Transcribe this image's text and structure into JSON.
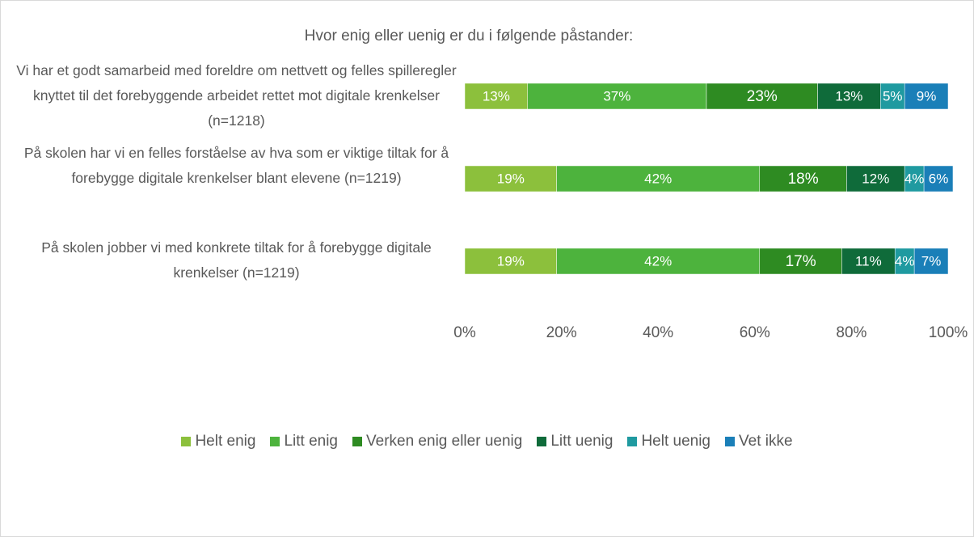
{
  "chart_data": {
    "type": "stacked-bar-horizontal",
    "title": "Hvor enig eller uenig er du i følgende påstander:",
    "categories": [
      "Vi har et godt samarbeid med foreldre om nettvett og felles spilleregler knyttet til det forebyggende arbeidet rettet mot digitale krenkelser (n=1218)",
      "På skolen har vi en felles forståelse av hva som er viktige tiltak for å forebygge digitale krenkelser blant elevene (n=1219)",
      "På skolen jobber vi med konkrete tiltak for å forebygge digitale krenkelser (n=1219)"
    ],
    "series": [
      {
        "name": "Helt enig",
        "color": "#8cc03c",
        "values": [
          13,
          19,
          19
        ],
        "value_labels": [
          "13%",
          "19%",
          "19%"
        ]
      },
      {
        "name": "Litt enig",
        "color": "#4db33d",
        "values": [
          37,
          42,
          42
        ],
        "value_labels": [
          "37%",
          "42%",
          "42%"
        ]
      },
      {
        "name": "Verken enig eller uenig",
        "color": "#2e8b22",
        "values": [
          23,
          18,
          17
        ],
        "value_labels": [
          "23%",
          "18%",
          "17%"
        ]
      },
      {
        "name": "Litt uenig",
        "color": "#0f6b3a",
        "values": [
          13,
          12,
          11
        ],
        "value_labels": [
          "13%",
          "12%",
          "11%"
        ]
      },
      {
        "name": "Helt uenig",
        "color": "#1f9aa0",
        "values": [
          5,
          4,
          4
        ],
        "value_labels": [
          "5%",
          "4%",
          "4%"
        ]
      },
      {
        "name": "Vet ikke",
        "color": "#1a7fb8",
        "values": [
          9,
          6,
          7
        ],
        "value_labels": [
          "9%",
          "6%",
          "7%"
        ]
      }
    ],
    "xlim": [
      0,
      100
    ],
    "xticks": [
      {
        "value": 0,
        "label": "0%"
      },
      {
        "value": 20,
        "label": "20%"
      },
      {
        "value": 40,
        "label": "40%"
      },
      {
        "value": 60,
        "label": "60%"
      },
      {
        "value": 80,
        "label": "80%"
      },
      {
        "value": 100,
        "label": "100%"
      }
    ],
    "legend": "bottom"
  }
}
